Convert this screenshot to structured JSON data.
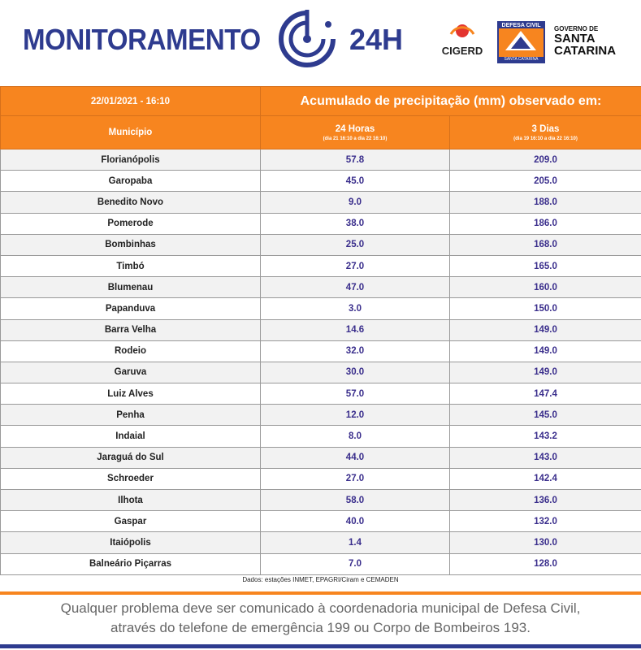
{
  "header": {
    "title": "MONITORAMENTO",
    "suffix": "24H",
    "logos": {
      "cigerd": "CIGERD",
      "defesa_civil": "DEFESA CIVIL",
      "defesa_civil_state": "SANTA CATARINA",
      "governo_line1": "GOVERNO DE",
      "governo_line2": "SANTA",
      "governo_line3": "CATARINA"
    }
  },
  "table": {
    "datetime": "22/01/2021 - 16:10",
    "heading": "Acumulado de precipitação (mm) observado em:",
    "columns": [
      {
        "label": "Município"
      },
      {
        "label": "24 Horas",
        "sub": "(dia 21 16:10 a dia 22 16:10)"
      },
      {
        "label": "3 Dias",
        "sub": "(dia 19 16:10 a dia 22 16:10)"
      }
    ],
    "rows": [
      [
        "Florianópolis",
        "57.8",
        "209.0"
      ],
      [
        "Garopaba",
        "45.0",
        "205.0"
      ],
      [
        "Benedito Novo",
        "9.0",
        "188.0"
      ],
      [
        "Pomerode",
        "38.0",
        "186.0"
      ],
      [
        "Bombinhas",
        "25.0",
        "168.0"
      ],
      [
        "Timbó",
        "27.0",
        "165.0"
      ],
      [
        "Blumenau",
        "47.0",
        "160.0"
      ],
      [
        "Papanduva",
        "3.0",
        "150.0"
      ],
      [
        "Barra Velha",
        "14.6",
        "149.0"
      ],
      [
        "Rodeio",
        "32.0",
        "149.0"
      ],
      [
        "Garuva",
        "30.0",
        "149.0"
      ],
      [
        "Luiz Alves",
        "57.0",
        "147.4"
      ],
      [
        "Penha",
        "12.0",
        "145.0"
      ],
      [
        "Indaial",
        "8.0",
        "143.2"
      ],
      [
        "Jaraguá do Sul",
        "44.0",
        "143.0"
      ],
      [
        "Schroeder",
        "27.0",
        "142.4"
      ],
      [
        "Ilhota",
        "58.0",
        "136.0"
      ],
      [
        "Gaspar",
        "40.0",
        "132.0"
      ],
      [
        "Itaiópolis",
        "1.4",
        "130.0"
      ],
      [
        "Balneário Piçarras",
        "7.0",
        "128.0"
      ]
    ],
    "source": "Dados: estações INMET, EPAGRI/Ciram e CEMADEN"
  },
  "footer": {
    "line1": "Qualquer problema deve ser comunicado à coordenadoria municipal de Defesa Civil,",
    "line2": "através do telefone de emergência 199 ou Corpo de Bombeiros 193."
  }
}
